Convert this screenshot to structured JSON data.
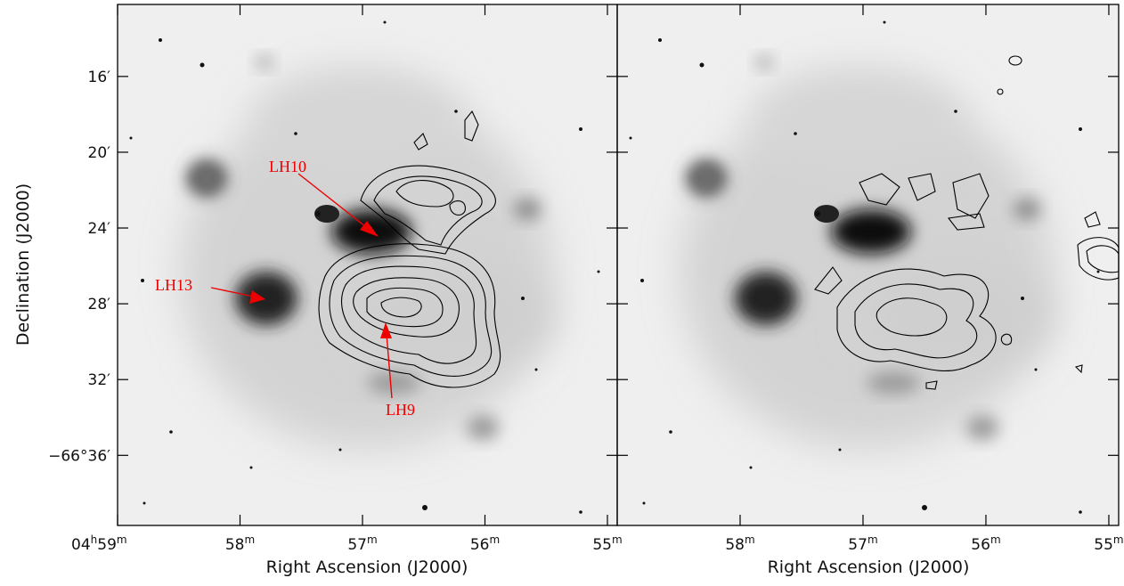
{
  "chart_data": [
    {
      "type": "image",
      "xlabel": "Right Ascension (J2000)",
      "ylabel": "Declination (J2000)",
      "xlim": [
        59.0,
        54.92
      ],
      "ylim": [
        12.2,
        39.7
      ],
      "xticks": [
        {
          "value": 59,
          "label": "04h59m"
        },
        {
          "value": 58,
          "label": "58m"
        },
        {
          "value": 57,
          "label": "57m"
        },
        {
          "value": 56,
          "label": "56m"
        },
        {
          "value": 55,
          "label": "55m"
        }
      ],
      "yticks": [
        {
          "value": 16,
          "label": "16′"
        },
        {
          "value": 20,
          "label": "20′"
        },
        {
          "value": 24,
          "label": "24′"
        },
        {
          "value": 28,
          "label": "28′"
        },
        {
          "value": 32,
          "label": "32′"
        },
        {
          "value": 36,
          "label": "−66°36′"
        }
      ],
      "annotations": [
        "LH10",
        "LH13",
        "LH9"
      ]
    },
    {
      "type": "image",
      "xlabel": "Right Ascension (J2000)",
      "xlim": [
        59.0,
        54.92
      ],
      "ylim": [
        12.2,
        39.7
      ],
      "xticks": [
        {
          "value": 58,
          "label": "58m"
        },
        {
          "value": 57,
          "label": "57m"
        },
        {
          "value": 56,
          "label": "56m"
        },
        {
          "value": 55,
          "label": "55m"
        }
      ],
      "yticks": [
        16,
        20,
        24,
        28,
        32,
        36
      ]
    }
  ]
}
